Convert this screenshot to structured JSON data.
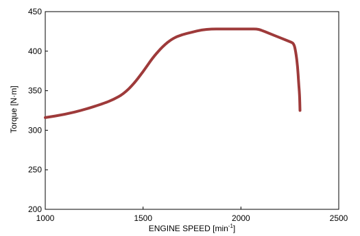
{
  "chart_data": {
    "type": "line",
    "title": "",
    "xlabel": "ENGINE SPEED [min",
    "xlabel_superscript": "-1",
    "xlabel_suffix": "]",
    "ylabel": "Torque [N·m]",
    "xlim": [
      1000,
      2500
    ],
    "ylim": [
      200,
      450
    ],
    "x_ticks": [
      1000,
      1500,
      2000,
      2500
    ],
    "y_ticks": [
      200,
      250,
      300,
      350,
      400,
      450
    ],
    "grid": false,
    "series": [
      {
        "color": "#9e3a3a",
        "points": [
          [
            1000,
            316
          ],
          [
            1100,
            320
          ],
          [
            1200,
            326
          ],
          [
            1300,
            334
          ],
          [
            1350,
            339
          ],
          [
            1400,
            346
          ],
          [
            1450,
            358
          ],
          [
            1500,
            374
          ],
          [
            1550,
            392
          ],
          [
            1600,
            406
          ],
          [
            1650,
            416
          ],
          [
            1700,
            421
          ],
          [
            1750,
            424
          ],
          [
            1800,
            427
          ],
          [
            1850,
            428
          ],
          [
            1900,
            428
          ],
          [
            1950,
            428
          ],
          [
            2000,
            428
          ],
          [
            2050,
            428
          ],
          [
            2080,
            428
          ],
          [
            2100,
            427
          ],
          [
            2150,
            422
          ],
          [
            2200,
            417
          ],
          [
            2250,
            412
          ],
          [
            2270,
            410
          ],
          [
            2280,
            400
          ],
          [
            2290,
            380
          ],
          [
            2295,
            360
          ],
          [
            2300,
            345
          ],
          [
            2302,
            325
          ]
        ]
      }
    ]
  }
}
